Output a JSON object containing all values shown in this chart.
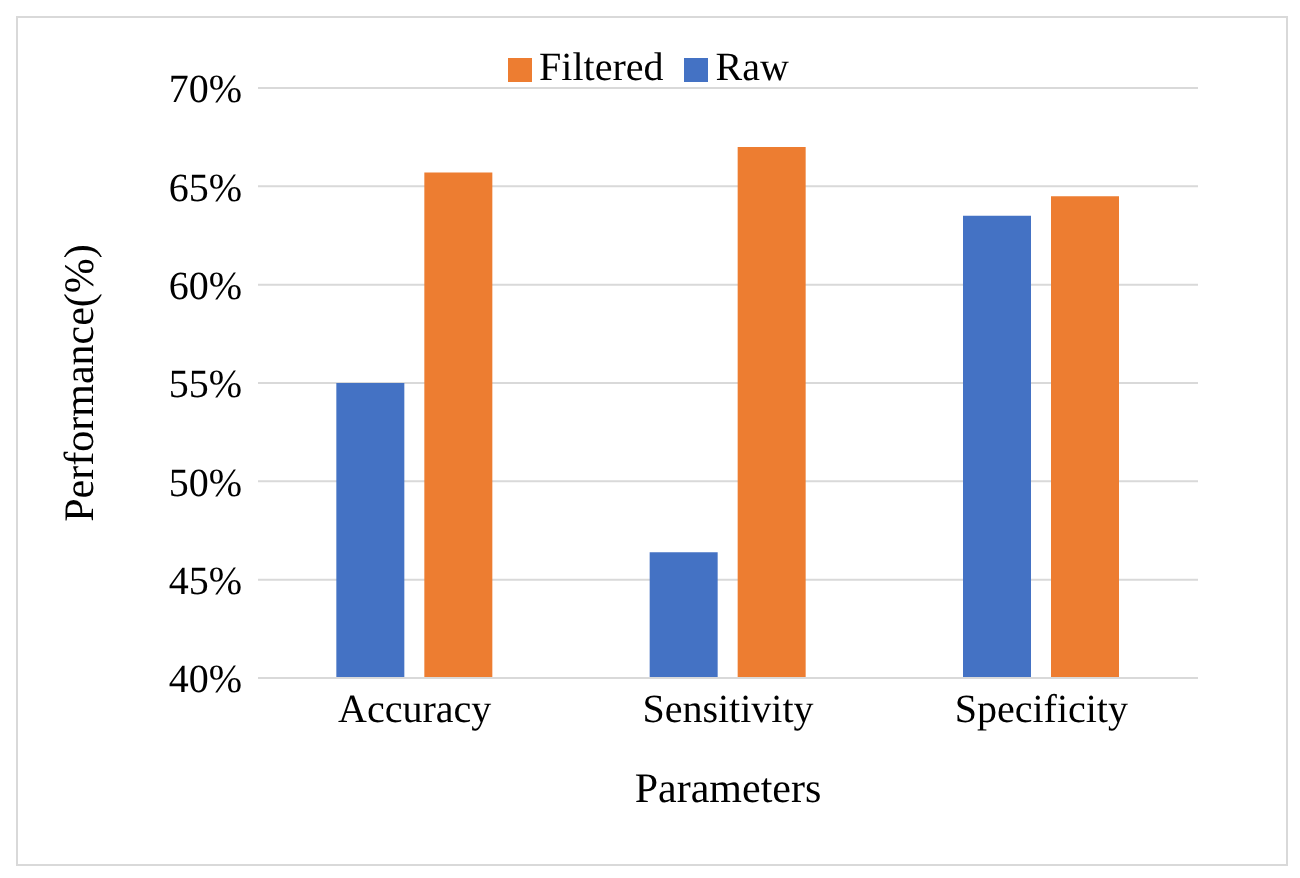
{
  "chart_data": {
    "type": "bar",
    "xlabel": "Parameters",
    "ylabel": "Performance(%)",
    "categories": [
      "Accuracy",
      "Sensitivity",
      "Specificity"
    ],
    "series": [
      {
        "name": "Raw",
        "color": "#4472c4",
        "values": [
          55.0,
          46.4,
          63.5
        ]
      },
      {
        "name": "Filtered",
        "color": "#ed7d31",
        "values": [
          65.7,
          67.0,
          64.5
        ]
      }
    ],
    "ylim": [
      40,
      70
    ],
    "yticks": [
      {
        "value": 40,
        "label": "40%"
      },
      {
        "value": 45,
        "label": "45%"
      },
      {
        "value": 50,
        "label": "50%"
      },
      {
        "value": 55,
        "label": "55%"
      },
      {
        "value": 60,
        "label": "60%"
      },
      {
        "value": 65,
        "label": "65%"
      },
      {
        "value": 70,
        "label": "70%"
      }
    ],
    "grid": "y",
    "legend": "top"
  }
}
